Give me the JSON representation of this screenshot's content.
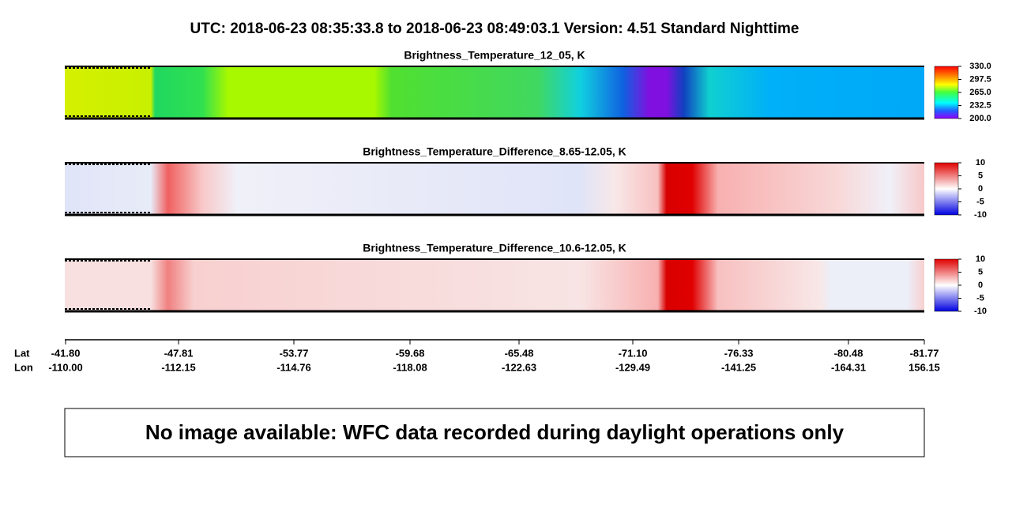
{
  "header": {
    "title": "UTC:  2018-06-23   08:35:33.8  to  2018-06-23   08:49:03.1    Version: 4.51  Standard Nighttime"
  },
  "panels": [
    {
      "title": "Brightness_Temperature_12_05, K",
      "colorbar": {
        "ticks": [
          {
            "value": 330,
            "label": "330.0"
          },
          297.5,
          {
            "value": 265,
            "label": "265.0"
          },
          232.5,
          {
            "value": 200,
            "label": "200.0"
          }
        ]
      }
    },
    {
      "title": "Brightness_Temperature_Difference_8.65-12.05, K",
      "colorbar": {
        "ticks": [
          10,
          5,
          0,
          -5,
          -10
        ]
      }
    },
    {
      "title": "Brightness_Temperature_Difference_10.6-12.05, K",
      "colorbar": {
        "ticks": [
          10,
          5,
          0,
          -5,
          -10
        ]
      }
    }
  ],
  "axis": {
    "lat_label": "Lat",
    "lon_label": "Lon",
    "lat": [
      "-41.80",
      "-47.81",
      "-53.77",
      "-59.68",
      "-65.48",
      "-71.10",
      "-76.33",
      "-80.48",
      "-81.77"
    ],
    "lon": [
      "-110.00",
      "-112.15",
      "-114.76",
      "-118.08",
      "-122.63",
      "-129.49",
      "-141.25",
      "-164.31",
      "156.15"
    ]
  },
  "message": "No image available: WFC data recorded during daylight operations only"
}
